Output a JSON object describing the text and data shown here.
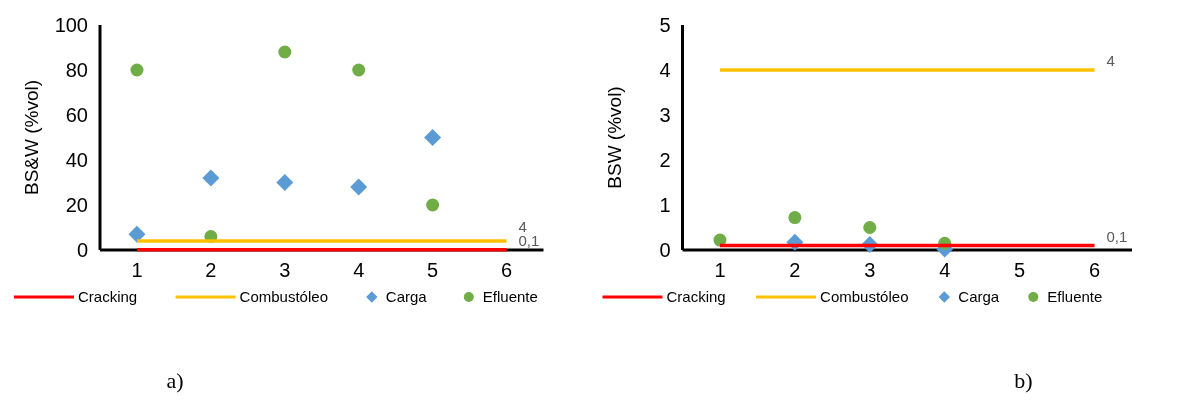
{
  "chart_data": [
    {
      "type": "scatter",
      "ylabel": "BS&W (%vol)",
      "xlim": [
        0.5,
        6.5
      ],
      "xticks": [
        1,
        2,
        3,
        4,
        5,
        6
      ],
      "ylim": [
        0,
        100
      ],
      "yticks": [
        0,
        20,
        40,
        60,
        80,
        100
      ],
      "legend": "bottom",
      "annotations": [
        "a)"
      ],
      "series": [
        {
          "name": "Cracking",
          "type": "line",
          "color": "#ff0000",
          "x": [
            1,
            6
          ],
          "values": [
            0.1,
            0.1
          ],
          "value_labels": [
            null,
            "0,1"
          ],
          "marker": "none",
          "line_style": "solid"
        },
        {
          "name": "Combustóleo",
          "type": "line",
          "color": "#ffc000",
          "x": [
            1,
            6
          ],
          "values": [
            4,
            4
          ],
          "value_labels": [
            null,
            "4"
          ],
          "marker": "none",
          "line_style": "solid"
        },
        {
          "name": "Carga",
          "color": "#5b9bd5",
          "x": [
            1,
            2,
            3,
            4,
            5
          ],
          "values": [
            7,
            32,
            30,
            28,
            50
          ],
          "marker": "diamond"
        },
        {
          "name": "Efluente",
          "color": "#70ad47",
          "x": [
            1,
            2,
            3,
            4,
            5
          ],
          "values": [
            80,
            6,
            88,
            80,
            20
          ],
          "marker": "circle"
        }
      ]
    },
    {
      "type": "scatter",
      "ylabel": "BSW (%vol)",
      "xlim": [
        0.5,
        6.5
      ],
      "xticks": [
        1,
        2,
        3,
        4,
        5,
        6
      ],
      "ylim": [
        0,
        5
      ],
      "yticks": [
        0,
        1,
        2,
        3,
        4,
        5
      ],
      "legend": "bottom",
      "annotations": [
        "b)"
      ],
      "series": [
        {
          "name": "Cracking",
          "type": "line",
          "color": "#ff0000",
          "x": [
            1,
            6
          ],
          "values": [
            0.1,
            0.1
          ],
          "value_labels": [
            null,
            "0,1"
          ],
          "marker": "none",
          "line_style": "solid"
        },
        {
          "name": "Combustóleo",
          "type": "line",
          "color": "#ffc000",
          "x": [
            1,
            6
          ],
          "values": [
            4,
            4
          ],
          "value_labels": [
            null,
            "4"
          ],
          "marker": "none",
          "line_style": "solid"
        },
        {
          "name": "Carga",
          "color": "#5b9bd5",
          "x": [
            2,
            3,
            4
          ],
          "values": [
            0.17,
            0.12,
            0.02
          ],
          "marker": "diamond"
        },
        {
          "name": "Efluente",
          "color": "#70ad47",
          "x": [
            1,
            2,
            3,
            4
          ],
          "values": [
            0.22,
            0.72,
            0.5,
            0.15
          ],
          "marker": "circle"
        }
      ]
    }
  ]
}
